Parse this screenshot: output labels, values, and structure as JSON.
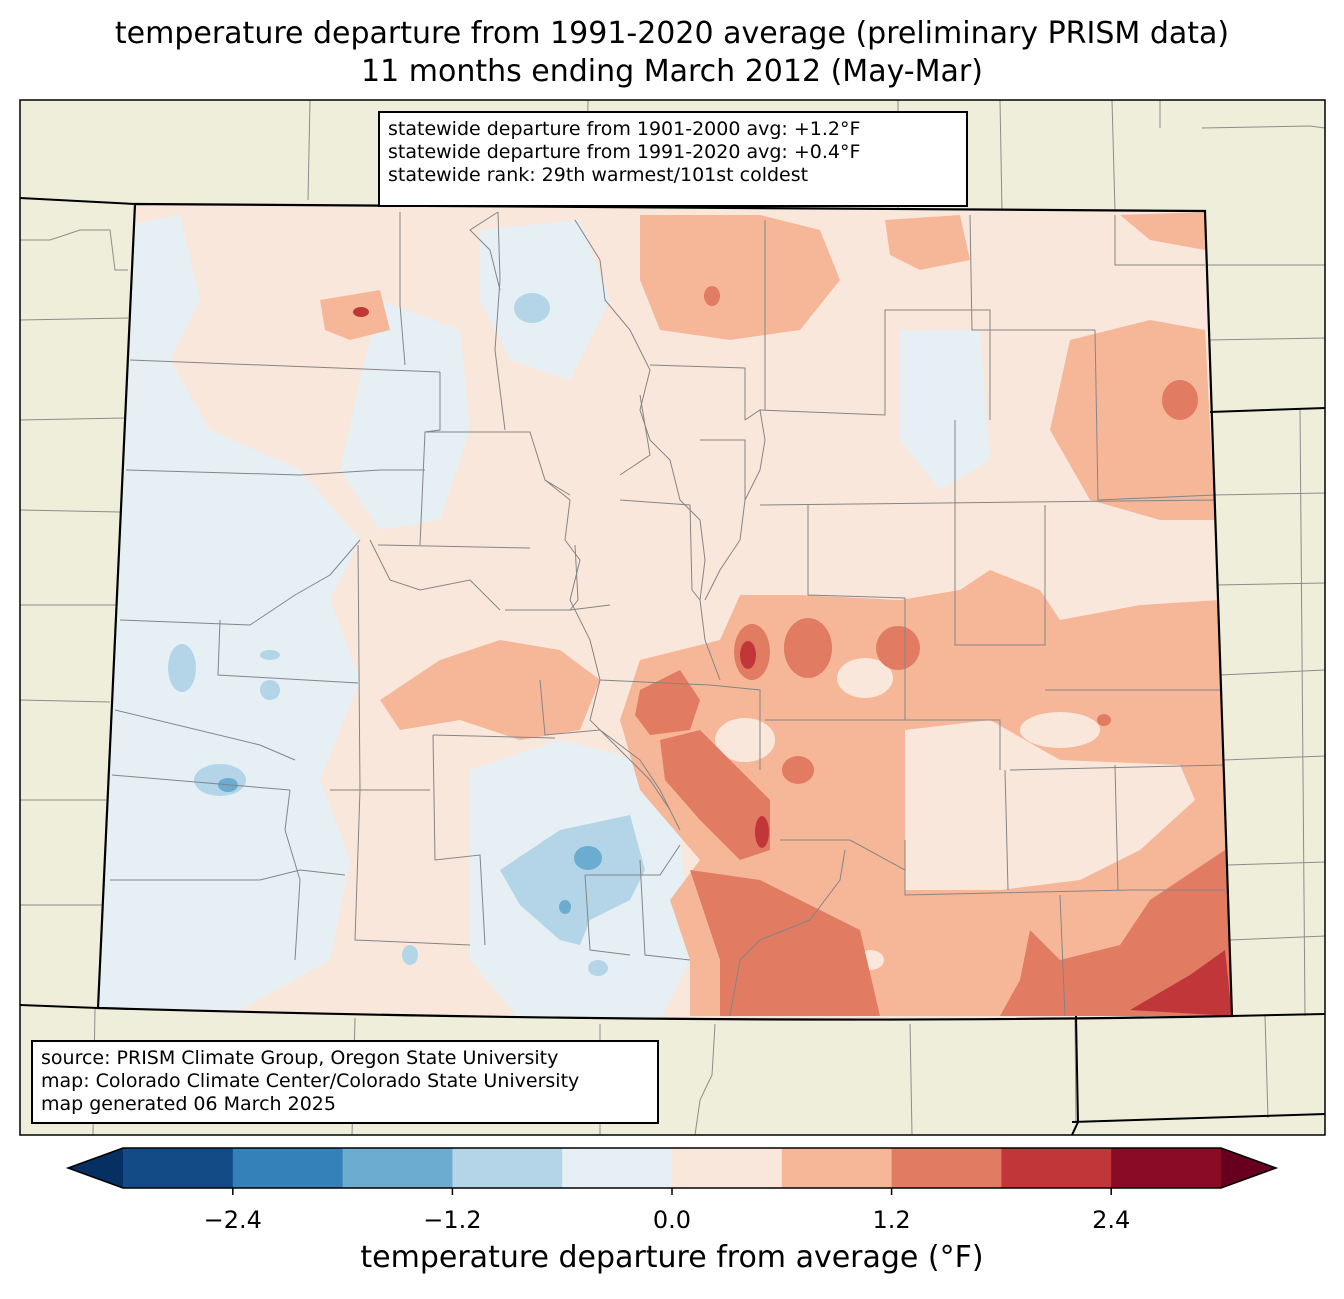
{
  "title": {
    "line1": "temperature departure from 1991-2020 average (preliminary PRISM data)",
    "line2": "11 months ending March 2012 (May-Mar)"
  },
  "stats": {
    "line1": "statewide departure from 1901-2000 avg: +1.2°F",
    "line2": "statewide departure from 1991-2020 avg: +0.4°F",
    "line3": "statewide rank: 29th warmest/101st coldest"
  },
  "source": {
    "line1": "source: PRISM Climate Group, Oregon State University",
    "line2": "map: Colorado Climate Center/Colorado State University",
    "line3": "map generated 06 March 2025"
  },
  "colorbar": {
    "label": "temperature departure from average (°F)",
    "ticks": [
      "−2.4",
      "−1.2",
      "0.0",
      "1.2",
      "2.4"
    ],
    "tick_values": [
      -2.4,
      -1.2,
      0.0,
      1.2,
      2.4
    ],
    "range": [
      -3.0,
      3.0
    ],
    "bin_width": 0.6,
    "colors": [
      "#053061",
      "#134b87",
      "#3480b9",
      "#6bacd0",
      "#b3d5e7",
      "#e5eff4",
      "#fae7dc",
      "#f6b799",
      "#e17b62",
      "#c13639",
      "#8a0b25",
      "#67001f"
    ]
  },
  "colors": {
    "land_background": "#efeedb",
    "state_border": "#000000",
    "county_border": "#808080"
  }
}
